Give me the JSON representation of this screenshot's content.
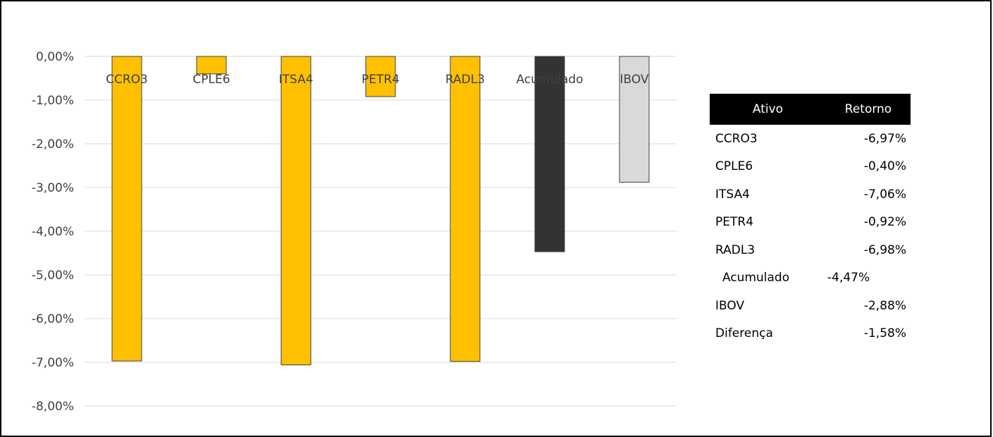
{
  "chart_data": {
    "type": "bar",
    "categories": [
      "CCRO3",
      "CPLE6",
      "ITSA4",
      "PETR4",
      "RADL3",
      "Acumulado",
      "IBOV"
    ],
    "values": [
      -6.97,
      -0.4,
      -7.06,
      -0.92,
      -6.98,
      -4.47,
      -2.88
    ],
    "colors": [
      "#ffc000",
      "#ffc000",
      "#ffc000",
      "#ffc000",
      "#ffc000",
      "#333333",
      "#d9d9d9"
    ],
    "yticks": [
      "0,00%",
      "-1,00%",
      "-2,00%",
      "-3,00%",
      "-4,00%",
      "-5,00%",
      "-6,00%",
      "-7,00%",
      "-8,00%"
    ],
    "ylim": [
      -8,
      0
    ],
    "grid": true,
    "title": "",
    "xlabel": "",
    "ylabel": ""
  },
  "table": {
    "header": {
      "ativo": "Ativo",
      "retorno": "Retorno"
    },
    "rows": [
      {
        "ativo": "CCRO3",
        "retorno": "-6,97%"
      },
      {
        "ativo": "CPLE6",
        "retorno": "-0,40%"
      },
      {
        "ativo": "ITSA4",
        "retorno": "-7,06%"
      },
      {
        "ativo": "PETR4",
        "retorno": "-0,92%"
      },
      {
        "ativo": "RADL3",
        "retorno": "-6,98%"
      },
      {
        "ativo": "Acumulado",
        "retorno": "-4,47%"
      },
      {
        "ativo": "IBOV",
        "retorno": "-2,88%"
      },
      {
        "ativo": "Diferença",
        "retorno": "-1,58%"
      }
    ]
  }
}
